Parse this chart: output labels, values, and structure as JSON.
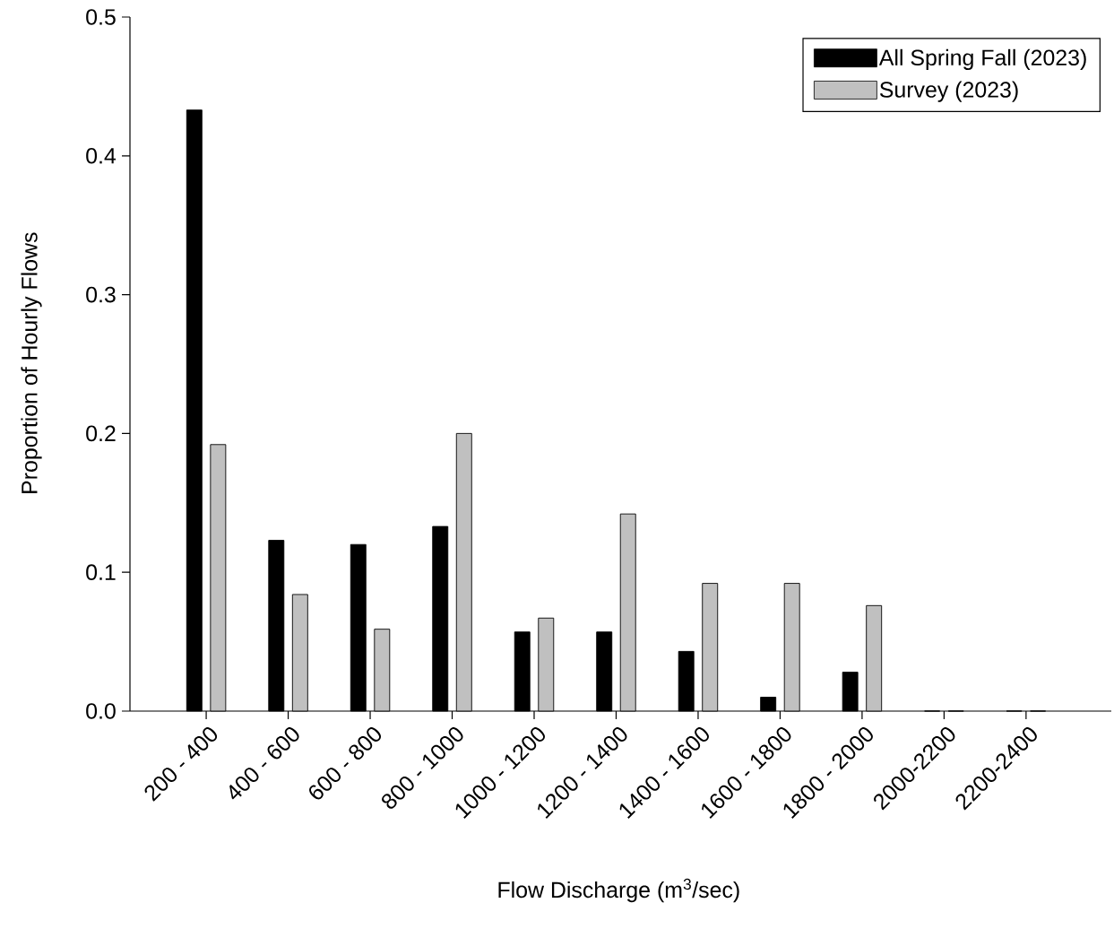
{
  "chart_data": {
    "type": "bar",
    "xlabel": "Flow Discharge (m$^{3}$/sec)",
    "ylabel": "Proportion of Hourly Flows",
    "categories": [
      "200 - 400",
      "400 - 600",
      "600 - 800",
      "800 - 1000",
      "1000 - 1200",
      "1200 - 1400",
      "1400 - 1600",
      "1600 - 1800",
      "1800 - 2000",
      "2000-2200",
      "2200-2400"
    ],
    "series": [
      {
        "name": "All Spring Fall (2023)",
        "color": "#000000",
        "values": [
          0.433,
          0.123,
          0.12,
          0.133,
          0.057,
          0.057,
          0.043,
          0.01,
          0.028,
          0,
          0
        ]
      },
      {
        "name": "Survey (2023)",
        "color": "#c0c0c0",
        "values": [
          0.192,
          0.084,
          0.059,
          0.2,
          0.067,
          0.142,
          0.092,
          0.092,
          0.076,
          0,
          0
        ]
      }
    ],
    "ylim": [
      0,
      0.5
    ],
    "yticks": [
      {
        "value": 0,
        "label": "0.0"
      },
      0.1,
      0.2,
      0.3,
      0.4,
      0.5
    ],
    "grid": false,
    "legend": "top right"
  }
}
